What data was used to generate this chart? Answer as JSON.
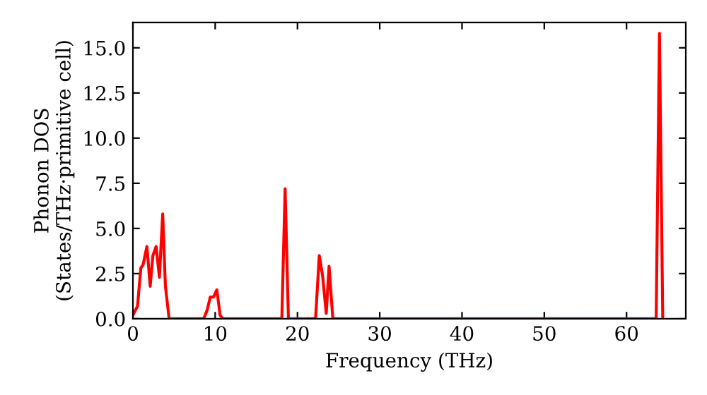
{
  "chart_data": {
    "type": "line",
    "xlabel": "Frequency (THz)",
    "ylabel": "Phonon DOS\n(States/THz·primitive cell)",
    "xlim": [
      0,
      67.2
    ],
    "ylim": [
      0,
      16.4
    ],
    "xticks": [
      0,
      10,
      20,
      30,
      40,
      50,
      60
    ],
    "yticks": [
      {
        "value": 0,
        "label": "0.0"
      },
      2.5,
      {
        "value": 5,
        "label": "5.0"
      },
      7.5,
      {
        "value": 10,
        "label": "10.0"
      },
      12.5,
      {
        "value": 15,
        "label": "15.0"
      }
    ],
    "grid": false,
    "legend": false,
    "x": [
      0,
      0.56,
      0.96,
      1.24,
      1.7,
      2.1,
      2.43,
      2.82,
      3.22,
      3.62,
      3.95,
      4.4,
      8.6,
      9.04,
      9.4,
      9.8,
      10.2,
      10.6,
      10.9,
      18.1,
      18.5,
      18.9,
      22.2,
      22.65,
      23.05,
      23.5,
      23.84,
      24.3,
      63.6,
      64.0,
      64.4
    ],
    "series": [
      {
        "color": "#ff0000",
        "values": [
          0.2,
          0.7,
          2.8,
          3.0,
          4.0,
          1.8,
          3.5,
          4.0,
          2.3,
          5.8,
          1.8,
          0,
          0,
          0.5,
          1.2,
          1.2,
          1.6,
          0.2,
          0,
          0,
          7.2,
          0,
          0,
          3.5,
          2.4,
          0.3,
          2.9,
          0,
          0,
          15.8,
          0
        ]
      }
    ]
  }
}
